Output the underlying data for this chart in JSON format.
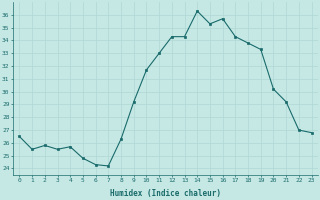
{
  "x": [
    0,
    1,
    2,
    3,
    4,
    5,
    6,
    7,
    8,
    9,
    10,
    11,
    12,
    13,
    14,
    15,
    16,
    17,
    18,
    19,
    20,
    21,
    22,
    23
  ],
  "y": [
    26.5,
    25.5,
    25.8,
    25.5,
    25.7,
    24.8,
    24.3,
    24.2,
    26.3,
    29.2,
    31.7,
    33.0,
    34.3,
    34.3,
    36.3,
    35.3,
    35.7,
    34.3,
    33.8,
    33.3,
    30.2,
    29.2,
    27.0,
    26.8
  ],
  "xlabel": "Humidex (Indice chaleur)",
  "bg_color": "#c5e8e5",
  "grid_color": "#b0d8d5",
  "line_color": "#1a6b6b",
  "ylim": [
    23.5,
    37.0
  ],
  "yticks": [
    24,
    25,
    26,
    27,
    28,
    29,
    30,
    31,
    32,
    33,
    34,
    35,
    36
  ],
  "xticks": [
    0,
    1,
    2,
    3,
    4,
    5,
    6,
    7,
    8,
    9,
    10,
    11,
    12,
    13,
    14,
    15,
    16,
    17,
    18,
    19,
    20,
    21,
    22,
    23
  ]
}
